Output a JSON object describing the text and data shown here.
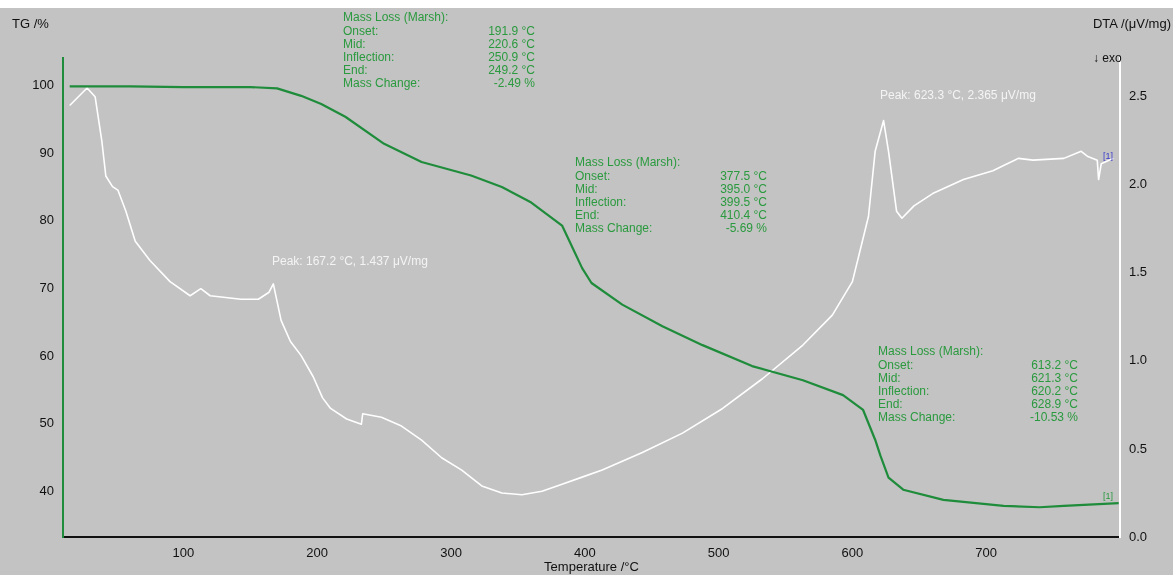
{
  "chart_data": {
    "type": "line",
    "xlabel": "Temperature /°C",
    "ylabel": "TG /%",
    "y2label": "DTA /(μV/mg)",
    "xlim": [
      10,
      800
    ],
    "xticks": [
      100,
      200,
      300,
      400,
      500,
      600,
      700
    ],
    "ylim": [
      33.2,
      104.1
    ],
    "yticks": [
      40,
      50,
      60,
      70,
      80,
      90,
      100
    ],
    "y2lim": [
      0,
      2.72
    ],
    "y2ticks": [
      {
        "value": 0,
        "label": "0.0"
      },
      {
        "value": 0.5,
        "label": "0.5"
      },
      {
        "value": 1,
        "label": "1.0"
      },
      {
        "value": 1.5,
        "label": "1.5"
      },
      {
        "value": 2,
        "label": "2.0"
      },
      {
        "value": 2.5,
        "label": "2.5"
      }
    ],
    "grid": false,
    "legend": false,
    "marker": "none",
    "line_style": "solid",
    "series": [
      {
        "color": "#1e8c3a",
        "x": [
          15,
          60,
          100,
          150,
          170,
          188,
          203,
          221,
          250,
          278,
          315,
          338,
          360,
          383,
          398,
          405,
          428,
          458,
          488,
          525,
          563,
          593,
          608,
          617,
          621,
          627,
          638,
          668,
          713,
          740,
          758,
          799
        ],
        "values": [
          99.9,
          99.9,
          99.8,
          99.8,
          99.6,
          98.5,
          97.3,
          95.4,
          91.4,
          88.7,
          86.7,
          85.0,
          82.7,
          79.3,
          73.0,
          70.8,
          67.6,
          64.4,
          61.6,
          58.5,
          56.4,
          54.2,
          52.0,
          47.6,
          45.2,
          42.0,
          40.2,
          38.7,
          37.8,
          37.6,
          37.8,
          38.2
        ]
      },
      {
        "color": "#ffffff",
        "axis": "y2",
        "x": [
          15,
          28,
          34,
          39,
          42,
          47,
          51,
          57,
          64,
          75,
          90,
          105,
          113,
          120,
          143,
          156,
          164,
          167.2,
          173,
          180,
          188,
          197,
          204,
          210,
          222,
          233,
          234,
          248,
          263,
          278,
          293,
          308,
          323,
          338,
          353,
          368,
          383,
          398,
          413,
          443,
          473,
          503,
          533,
          563,
          585,
          600,
          612,
          617,
          623.3,
          627,
          633,
          637,
          646,
          660,
          683,
          705,
          713,
          724,
          735,
          758,
          771,
          776,
          783,
          784,
          786,
          795
        ],
        "values": [
          2.45,
          2.55,
          2.5,
          2.25,
          2.05,
          1.99,
          1.97,
          1.85,
          1.68,
          1.57,
          1.45,
          1.37,
          1.41,
          1.37,
          1.35,
          1.35,
          1.39,
          1.437,
          1.23,
          1.11,
          1.03,
          0.91,
          0.79,
          0.73,
          0.67,
          0.64,
          0.7,
          0.68,
          0.63,
          0.55,
          0.45,
          0.38,
          0.29,
          0.25,
          0.24,
          0.26,
          0.3,
          0.34,
          0.38,
          0.48,
          0.59,
          0.73,
          0.9,
          1.09,
          1.26,
          1.45,
          1.82,
          2.19,
          2.365,
          2.19,
          1.85,
          1.81,
          1.88,
          1.95,
          2.03,
          2.08,
          2.11,
          2.15,
          2.14,
          2.15,
          2.19,
          2.16,
          2.14,
          2.03,
          2.12,
          2.15
        ]
      }
    ],
    "annotations": [
      "Mass Loss (Marsh):\nOnset:\t191.9 °C\nMid:\t220.6 °C\nInflection:\t250.9 °C\nEnd:\t249.2 °C\nMass Change:\t-2.49 %",
      "Mass Loss (Marsh):\nOnset:\t377.5 °C\nMid:\t395.0 °C\nInflection:\t399.5 °C\nEnd:\t410.4 °C\nMass Change:\t-5.69 %",
      "Mass Loss (Marsh):\nOnset:\t613.2 °C\nMid:\t621.3 °C\nInflection:\t620.2 °C\nEnd:\t628.9 °C\nMass Change:\t-10.53 %",
      "Peak: 167.2 °C, 1.437 μV/mg",
      "Peak: 623.3 °C, 2.365 μV/mg",
      "↓ exo",
      "[1]",
      "[1]"
    ]
  }
}
